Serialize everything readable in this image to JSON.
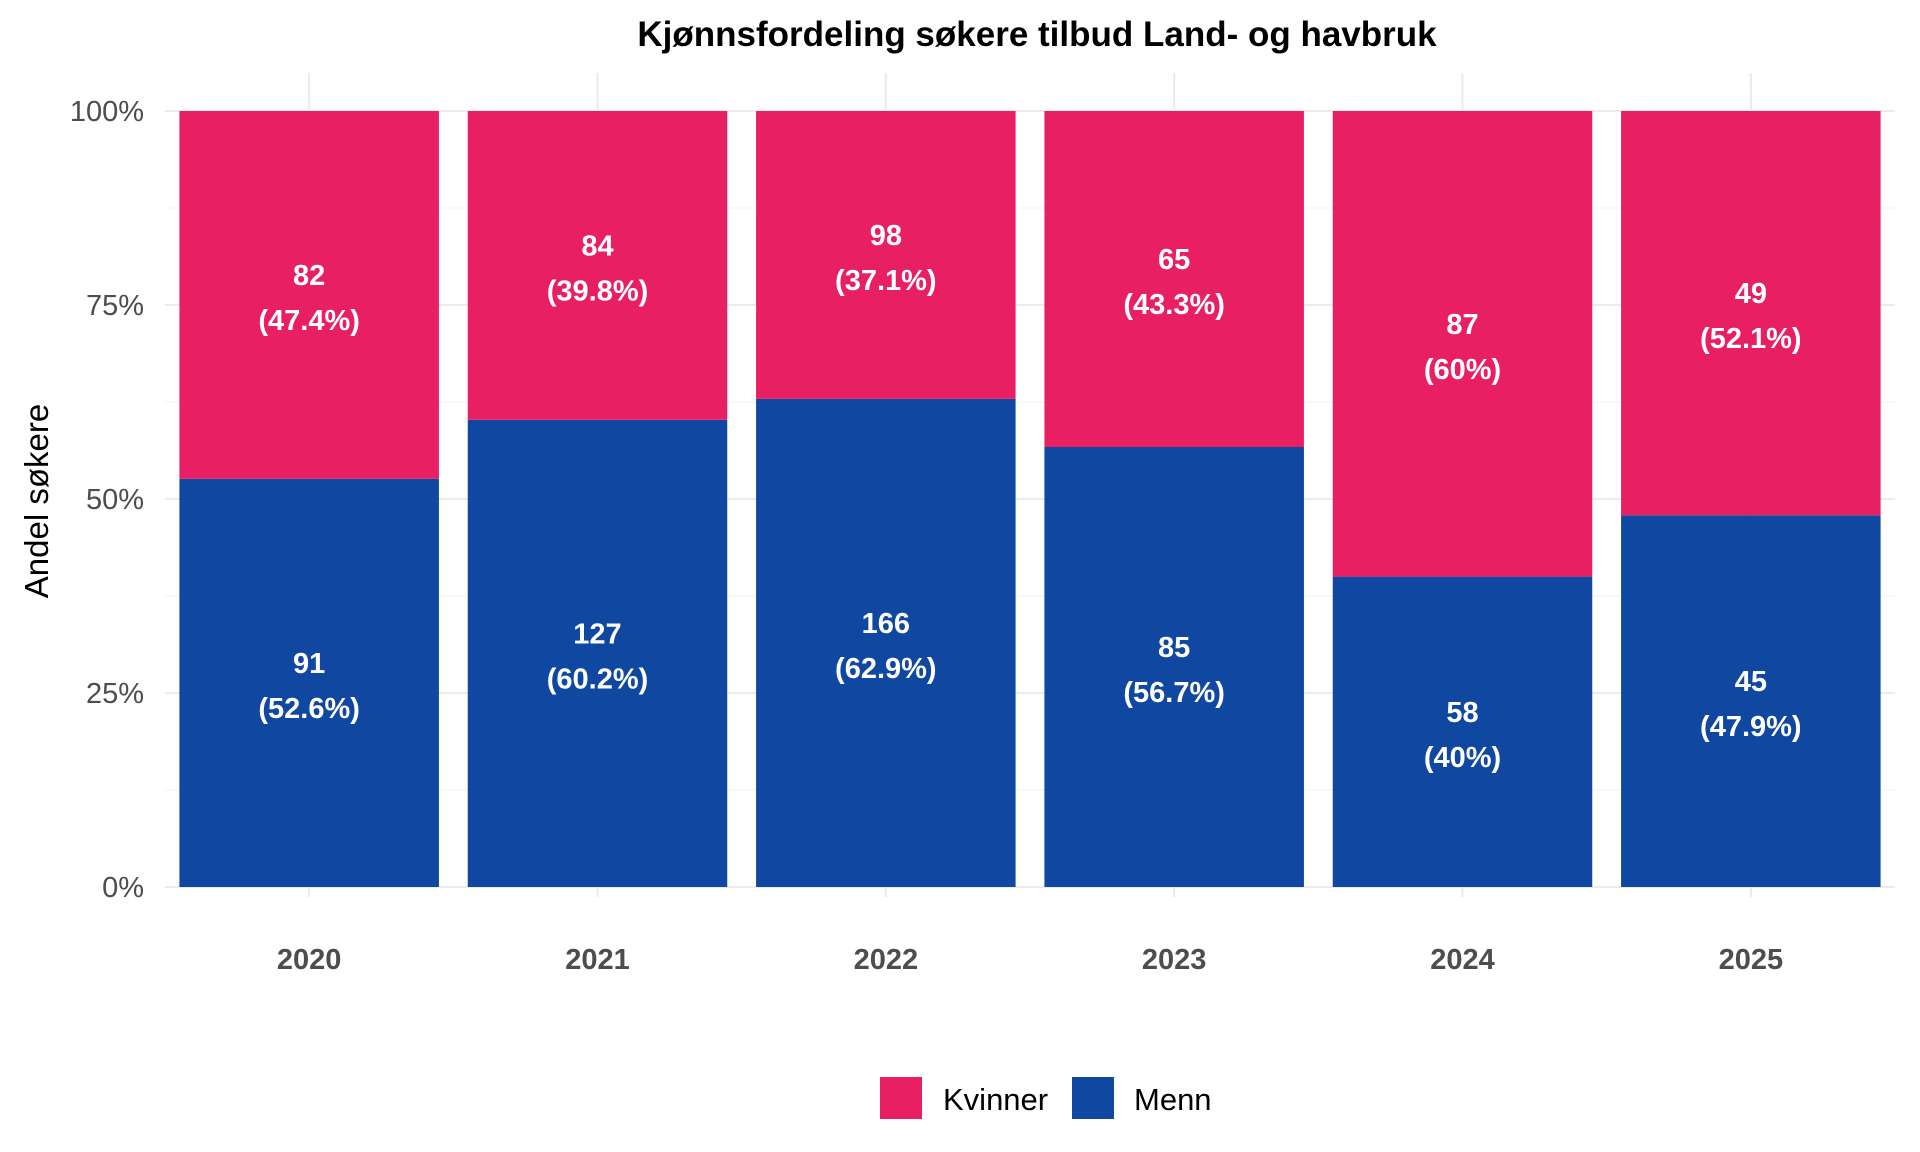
{
  "chart_data": {
    "type": "bar",
    "stacked": true,
    "normalized": true,
    "title": "Kjønnsfordeling søkere tilbud Land- og havbruk",
    "xlabel": "",
    "ylabel": "Andel søkere",
    "ylim": [
      0,
      1
    ],
    "yticks": [
      "0%",
      "25%",
      "50%",
      "75%",
      "100%"
    ],
    "categories": [
      "2020",
      "2021",
      "2022",
      "2023",
      "2024",
      "2025"
    ],
    "series": [
      {
        "name": "Menn",
        "color": "#0f47a1",
        "counts": [
          91,
          127,
          166,
          85,
          58,
          45
        ],
        "share": [
          0.526,
          0.602,
          0.629,
          0.567,
          0.4,
          0.479
        ],
        "pct_labels": [
          "(52.6%)",
          "(60.2%)",
          "(62.9%)",
          "(56.7%)",
          "(40%)",
          "(47.9%)"
        ]
      },
      {
        "name": "Kvinner",
        "color": "#e91f63",
        "counts": [
          82,
          84,
          98,
          65,
          87,
          49
        ],
        "share": [
          0.474,
          0.398,
          0.371,
          0.433,
          0.6,
          0.521
        ],
        "pct_labels": [
          "(47.4%)",
          "(39.8%)",
          "(37.1%)",
          "(43.3%)",
          "(60%)",
          "(52.1%)"
        ]
      }
    ],
    "legend": {
      "placement": "bottom",
      "items": [
        {
          "label": "Kvinner",
          "color": "#e91f63"
        },
        {
          "label": "Menn",
          "color": "#0f47a1"
        }
      ]
    },
    "grid": true
  }
}
